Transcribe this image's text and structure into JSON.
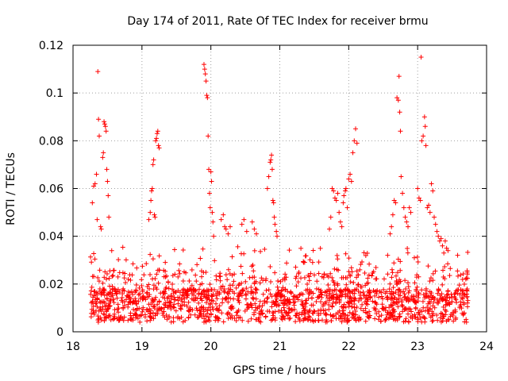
{
  "chart_data": {
    "type": "scatter",
    "title": "Day 174 of 2011, Rate Of TEC Index for receiver brmu",
    "xlabel": "GPS time / hours",
    "ylabel": "ROTI / TECUs",
    "xlim": [
      18,
      24
    ],
    "ylim": [
      0,
      0.12
    ],
    "x_ticks": [
      "18",
      "19",
      "20",
      "21",
      "22",
      "23",
      "24"
    ],
    "y_ticks": [
      "0",
      "0.02",
      "0.04",
      "0.06",
      "0.08",
      "0.1",
      "0.12"
    ],
    "grid": true,
    "marker": "+",
    "color": "#ff0000",
    "series": [
      {
        "name": "ROTI",
        "points": [
          [
            18.28,
            0.054
          ],
          [
            18.3,
            0.061
          ],
          [
            18.32,
            0.062
          ],
          [
            18.34,
            0.066
          ],
          [
            18.35,
            0.047
          ],
          [
            18.36,
            0.109
          ],
          [
            18.37,
            0.089
          ],
          [
            18.38,
            0.082
          ],
          [
            18.4,
            0.044
          ],
          [
            18.41,
            0.043
          ],
          [
            18.43,
            0.073
          ],
          [
            18.44,
            0.075
          ],
          [
            18.45,
            0.088
          ],
          [
            18.46,
            0.087
          ],
          [
            18.47,
            0.086
          ],
          [
            18.48,
            0.084
          ],
          [
            18.49,
            0.068
          ],
          [
            18.5,
            0.063
          ],
          [
            18.51,
            0.057
          ],
          [
            18.52,
            0.048
          ],
          [
            19.1,
            0.047
          ],
          [
            19.12,
            0.05
          ],
          [
            19.13,
            0.055
          ],
          [
            19.14,
            0.059
          ],
          [
            19.15,
            0.06
          ],
          [
            19.16,
            0.07
          ],
          [
            19.17,
            0.072
          ],
          [
            19.18,
            0.049
          ],
          [
            19.19,
            0.048
          ],
          [
            19.2,
            0.08
          ],
          [
            19.21,
            0.081
          ],
          [
            19.22,
            0.083
          ],
          [
            19.23,
            0.084
          ],
          [
            19.24,
            0.078
          ],
          [
            19.25,
            0.077
          ],
          [
            19.9,
            0.112
          ],
          [
            19.91,
            0.11
          ],
          [
            19.92,
            0.108
          ],
          [
            19.93,
            0.105
          ],
          [
            19.94,
            0.099
          ],
          [
            19.95,
            0.098
          ],
          [
            19.96,
            0.082
          ],
          [
            19.97,
            0.068
          ],
          [
            19.98,
            0.058
          ],
          [
            19.99,
            0.052
          ],
          [
            20.0,
            0.067
          ],
          [
            20.01,
            0.063
          ],
          [
            20.02,
            0.05
          ],
          [
            20.03,
            0.046
          ],
          [
            20.04,
            0.04
          ],
          [
            20.15,
            0.047
          ],
          [
            20.18,
            0.049
          ],
          [
            20.2,
            0.044
          ],
          [
            20.22,
            0.043
          ],
          [
            20.25,
            0.041
          ],
          [
            20.28,
            0.044
          ],
          [
            20.45,
            0.045
          ],
          [
            20.48,
            0.047
          ],
          [
            20.52,
            0.042
          ],
          [
            20.6,
            0.046
          ],
          [
            20.63,
            0.043
          ],
          [
            20.66,
            0.041
          ],
          [
            20.82,
            0.06
          ],
          [
            20.84,
            0.065
          ],
          [
            20.86,
            0.071
          ],
          [
            20.87,
            0.072
          ],
          [
            20.88,
            0.074
          ],
          [
            20.89,
            0.068
          ],
          [
            20.9,
            0.055
          ],
          [
            20.91,
            0.054
          ],
          [
            20.92,
            0.048
          ],
          [
            20.93,
            0.045
          ],
          [
            20.95,
            0.042
          ],
          [
            20.96,
            0.04
          ],
          [
            21.72,
            0.043
          ],
          [
            21.74,
            0.048
          ],
          [
            21.76,
            0.06
          ],
          [
            21.78,
            0.059
          ],
          [
            21.8,
            0.056
          ],
          [
            21.82,
            0.055
          ],
          [
            21.84,
            0.058
          ],
          [
            21.86,
            0.05
          ],
          [
            21.88,
            0.046
          ],
          [
            21.9,
            0.044
          ],
          [
            21.92,
            0.054
          ],
          [
            21.93,
            0.057
          ],
          [
            21.95,
            0.059
          ],
          [
            21.96,
            0.06
          ],
          [
            21.98,
            0.052
          ],
          [
            22.0,
            0.064
          ],
          [
            22.02,
            0.066
          ],
          [
            22.04,
            0.063
          ],
          [
            22.06,
            0.075
          ],
          [
            22.08,
            0.08
          ],
          [
            22.1,
            0.085
          ],
          [
            22.12,
            0.079
          ],
          [
            22.6,
            0.041
          ],
          [
            22.62,
            0.044
          ],
          [
            22.64,
            0.049
          ],
          [
            22.66,
            0.055
          ],
          [
            22.68,
            0.054
          ],
          [
            22.7,
            0.098
          ],
          [
            22.72,
            0.097
          ],
          [
            22.73,
            0.107
          ],
          [
            22.74,
            0.092
          ],
          [
            22.75,
            0.084
          ],
          [
            22.76,
            0.065
          ],
          [
            22.78,
            0.058
          ],
          [
            22.8,
            0.052
          ],
          [
            22.82,
            0.048
          ],
          [
            22.84,
            0.046
          ],
          [
            22.86,
            0.044
          ],
          [
            22.88,
            0.052
          ],
          [
            22.9,
            0.05
          ],
          [
            23.0,
            0.06
          ],
          [
            23.02,
            0.056
          ],
          [
            23.04,
            0.055
          ],
          [
            23.05,
            0.115
          ],
          [
            23.06,
            0.08
          ],
          [
            23.08,
            0.082
          ],
          [
            23.1,
            0.09
          ],
          [
            23.11,
            0.086
          ],
          [
            23.12,
            0.078
          ],
          [
            23.14,
            0.052
          ],
          [
            23.16,
            0.053
          ],
          [
            23.18,
            0.05
          ],
          [
            23.2,
            0.062
          ],
          [
            23.22,
            0.059
          ],
          [
            23.24,
            0.048
          ],
          [
            23.26,
            0.045
          ],
          [
            23.28,
            0.042
          ],
          [
            23.3,
            0.04
          ],
          [
            23.32,
            0.038
          ],
          [
            23.34,
            0.039
          ],
          [
            23.36,
            0.036
          ],
          [
            23.38,
            0.033
          ],
          [
            23.4,
            0.038
          ],
          [
            23.42,
            0.035
          ],
          [
            23.44,
            0.034
          ]
        ]
      }
    ]
  }
}
